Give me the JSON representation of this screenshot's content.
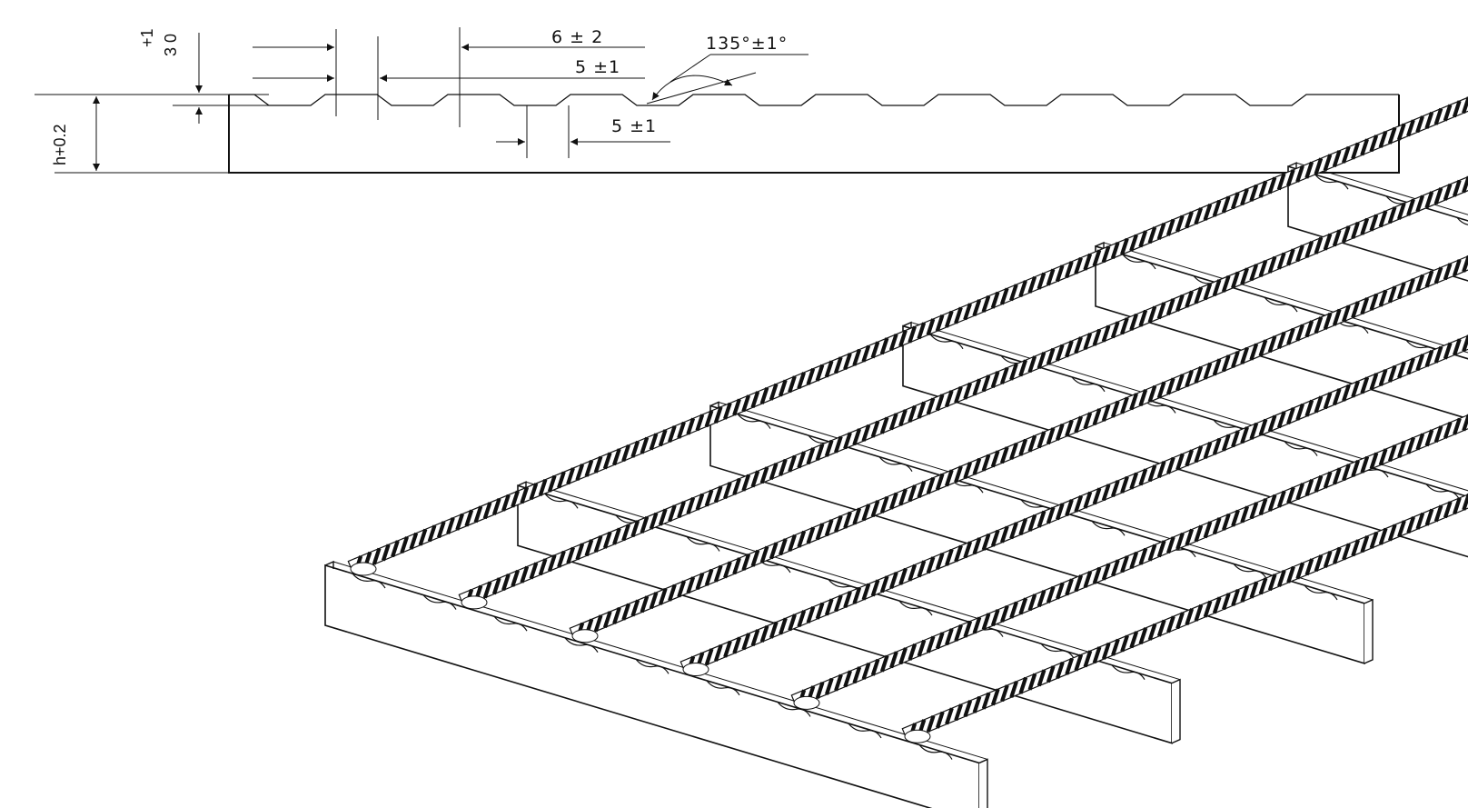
{
  "profile_view": {
    "dimensions": {
      "notch_top_width": "6 ± 2",
      "notch_pitch": "5 ±1",
      "notch_bottom_width": "5 ±1",
      "notch_angle": "135°±1°",
      "notch_depth_value": "3 0",
      "notch_depth_tolerance": "+1",
      "bar_height": "h+0.2"
    }
  },
  "isometric_view": {
    "bearing_bar_count": 6,
    "cross_bar_count": 6,
    "cross_bar_style": "twisted"
  }
}
